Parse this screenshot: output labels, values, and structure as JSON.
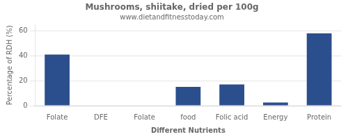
{
  "chart_data": {
    "type": "bar",
    "title": "Mushrooms, shiitake, dried per 100g",
    "subtitle": "www.dietandfitnesstoday.com",
    "xlabel": "Different Nutrients",
    "ylabel": "Percentage of RDH (%)",
    "categories": [
      "Folate",
      "DFE",
      "Folate",
      "food",
      "Folic acid",
      "Energy",
      "Protein"
    ],
    "values": [
      41,
      0.3,
      0.3,
      15,
      17,
      2.5,
      58
    ],
    "color": "#2b4f8c",
    "ylim": [
      0,
      65
    ],
    "yticks": [
      0,
      20,
      40,
      60
    ],
    "grid": true
  }
}
